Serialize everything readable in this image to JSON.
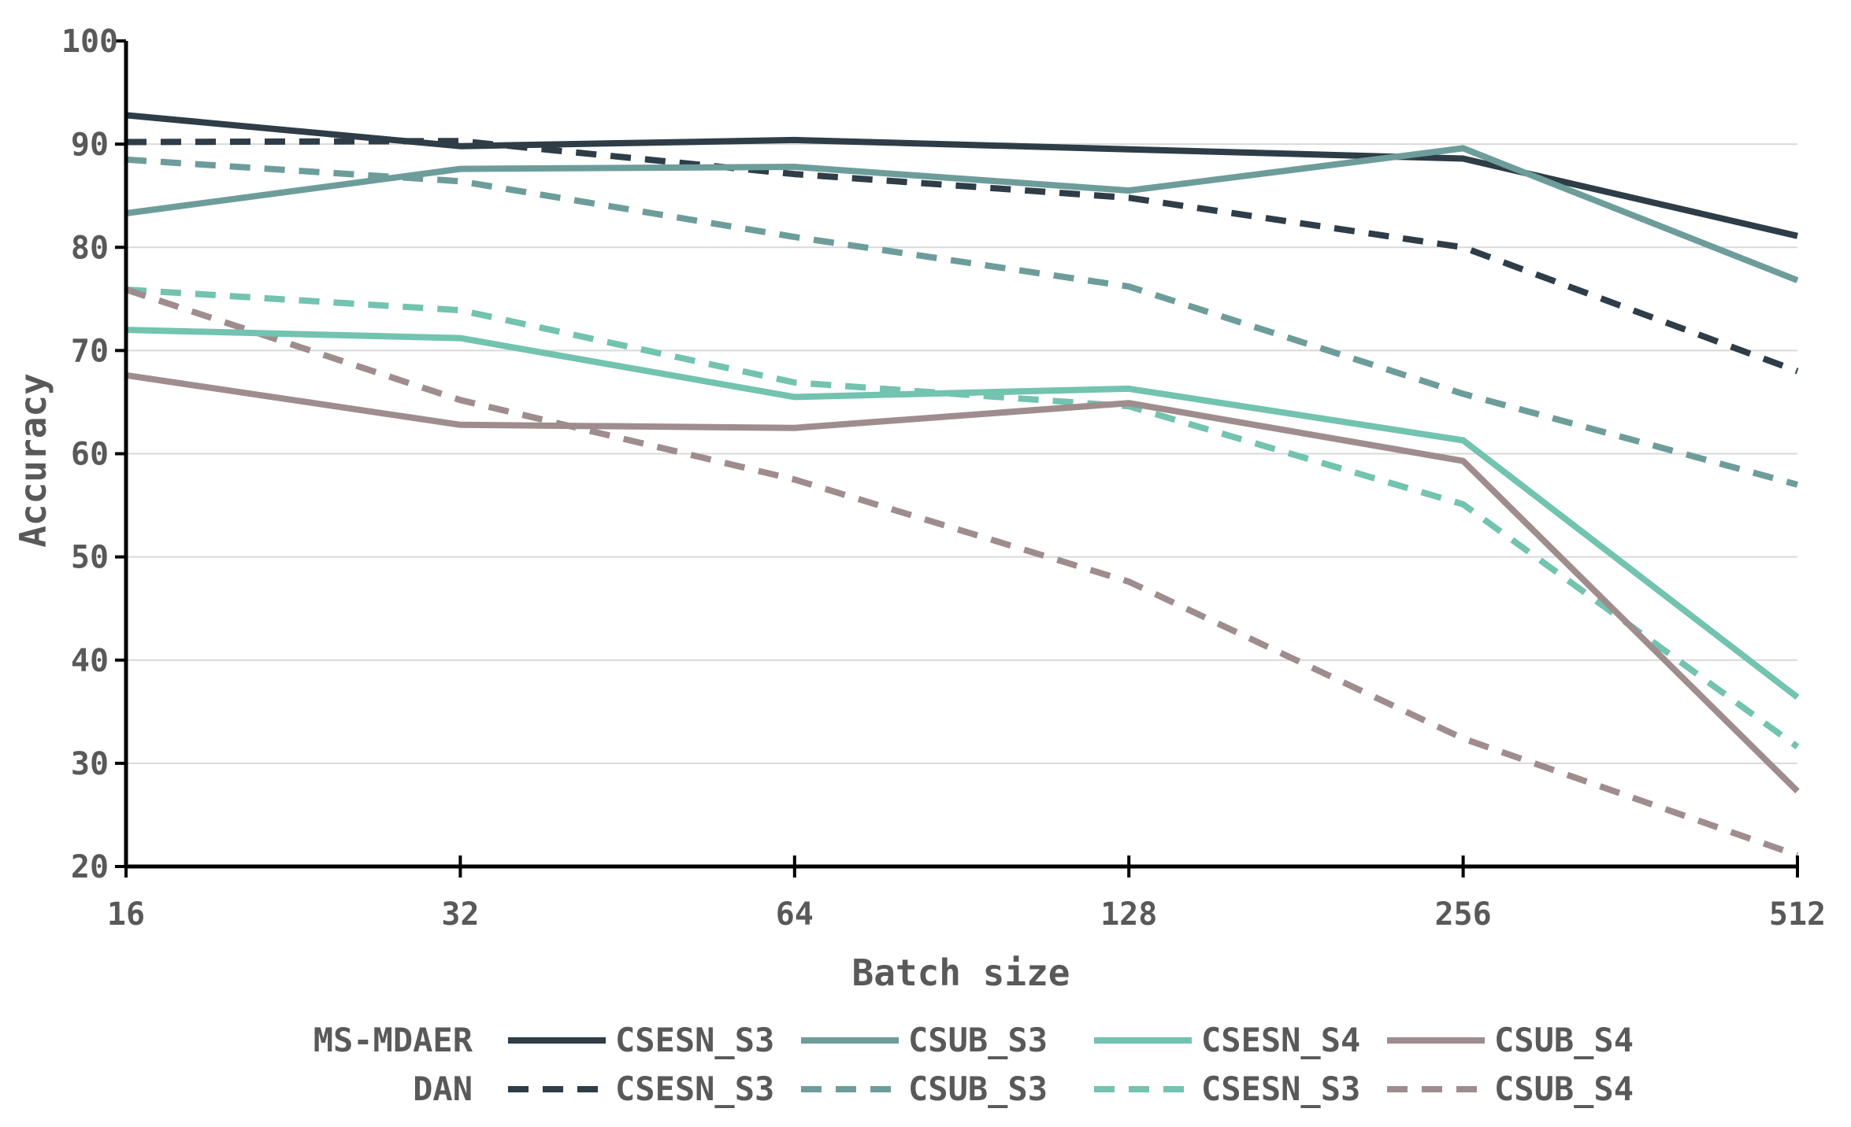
{
  "chart_data": {
    "type": "line",
    "title": "",
    "xlabel": "Batch size",
    "ylabel": "Accuracy",
    "categories": [
      "16",
      "32",
      "64",
      "128",
      "256",
      "512"
    ],
    "ylim": [
      20,
      100
    ],
    "yticks": [
      20,
      30,
      40,
      50,
      60,
      70,
      80,
      90,
      100
    ],
    "grid": true,
    "legend_position": "bottom",
    "legend_groups": [
      {
        "label": "MS-MDAER",
        "style": "solid"
      },
      {
        "label": "DAN",
        "style": "dashed"
      }
    ],
    "series": [
      {
        "group": "MS-MDAER",
        "name": "CSESN_S3",
        "style": "solid",
        "color": "#2E3D47",
        "values": [
          92.8,
          89.8,
          90.4,
          89.5,
          88.6,
          81.1
        ]
      },
      {
        "group": "MS-MDAER",
        "name": "CSUB_S3",
        "style": "solid",
        "color": "#6D9D9A",
        "values": [
          83.3,
          87.6,
          87.8,
          85.5,
          89.6,
          76.8
        ]
      },
      {
        "group": "MS-MDAER",
        "name": "CSESN_S4",
        "style": "solid",
        "color": "#72C3AF",
        "values": [
          72.0,
          71.2,
          65.5,
          66.3,
          61.3,
          36.4
        ]
      },
      {
        "group": "MS-MDAER",
        "name": "CSUB_S4",
        "style": "solid",
        "color": "#9F8D8D",
        "values": [
          67.6,
          62.8,
          62.5,
          64.9,
          59.3,
          27.3
        ]
      },
      {
        "group": "DAN",
        "name": "CSESN_S3",
        "style": "dashed",
        "color": "#2E3D47",
        "values": [
          90.2,
          90.3,
          87.1,
          84.8,
          80.0,
          68.0
        ]
      },
      {
        "group": "DAN",
        "name": "CSUB_S3",
        "style": "dashed",
        "color": "#6D9D9A",
        "values": [
          88.5,
          86.4,
          81.0,
          76.2,
          65.8,
          57.0
        ]
      },
      {
        "group": "DAN",
        "name": "CSESN_S3",
        "style": "dashed",
        "color": "#72C3AF",
        "values": [
          75.9,
          73.9,
          66.9,
          64.6,
          55.1,
          31.6
        ]
      },
      {
        "group": "DAN",
        "name": "CSUB_S4",
        "style": "dashed",
        "color": "#9F8D8D",
        "values": [
          75.9,
          65.2,
          57.5,
          47.6,
          32.4,
          21.1
        ]
      }
    ]
  }
}
